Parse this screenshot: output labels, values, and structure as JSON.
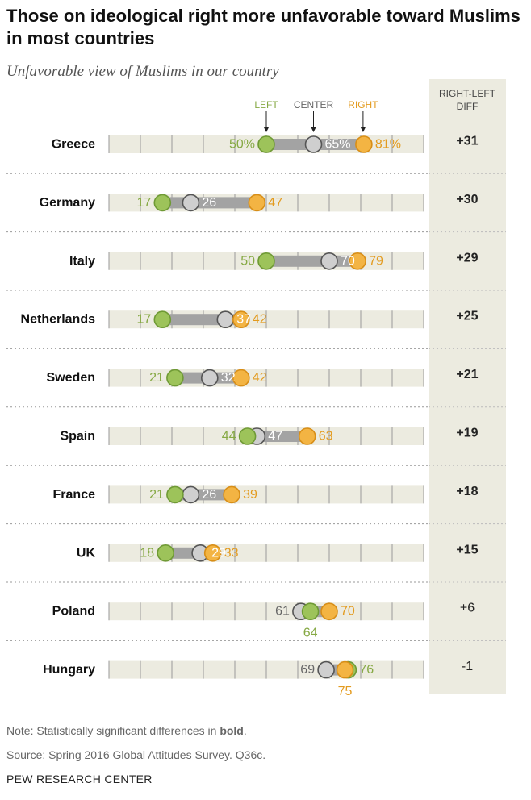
{
  "header": {
    "title": "Those on ideological right more unfavorable toward Muslims in most countries",
    "subtitle": "Unfavorable view of Muslims in our country"
  },
  "diff_header": "RIGHT-LEFT DIFF",
  "footer": {
    "note_prefix": "Note: Statistically significant differences in ",
    "note_bold": "bold",
    "note_suffix": ".",
    "source": "Source: Spring 2016 Global Attitudes Survey. Q36c.",
    "brand": "PEW RESEARCH CENTER"
  },
  "colors": {
    "left": "#9dc35a",
    "center": "#cfcfcf",
    "right": "#f3b443",
    "left_text": "#86a944",
    "center_text": "#666666",
    "right_text": "#e39b1f",
    "bar": "#a3a3a3",
    "track": "#ecebe0",
    "diff_panel": "#ecebe0"
  },
  "chart_data": {
    "type": "dot",
    "title": "Those on ideological right more unfavorable toward Muslims in most countries",
    "subtitle": "Unfavorable view of Muslims in our country",
    "xlim": [
      0,
      100
    ],
    "series": [
      {
        "name": "LEFT",
        "values": [
          50,
          17,
          50,
          17,
          21,
          44,
          21,
          18,
          64,
          76
        ]
      },
      {
        "name": "CENTER",
        "values": [
          65,
          26,
          70,
          37,
          32,
          47,
          26,
          29,
          61,
          69
        ]
      },
      {
        "name": "RIGHT",
        "values": [
          81,
          47,
          79,
          42,
          42,
          63,
          39,
          33,
          70,
          75
        ]
      }
    ],
    "rows": [
      {
        "country": "Greece",
        "left": 50,
        "center": 65,
        "right": 81,
        "left_label": "50%",
        "center_label": "65%",
        "right_label": "81%",
        "diff": "+31",
        "significant": true
      },
      {
        "country": "Germany",
        "left": 17,
        "center": 26,
        "right": 47,
        "left_label": "17",
        "center_label": "26",
        "right_label": "47",
        "diff": "+30",
        "significant": true
      },
      {
        "country": "Italy",
        "left": 50,
        "center": 70,
        "right": 79,
        "left_label": "50",
        "center_label": "70",
        "right_label": "79",
        "diff": "+29",
        "significant": true
      },
      {
        "country": "Netherlands",
        "left": 17,
        "center": 37,
        "right": 42,
        "left_label": "17",
        "center_label": "37",
        "right_label": "42",
        "diff": "+25",
        "significant": true
      },
      {
        "country": "Sweden",
        "left": 21,
        "center": 32,
        "right": 42,
        "left_label": "21",
        "center_label": "32",
        "right_label": "42",
        "diff": "+21",
        "significant": true
      },
      {
        "country": "Spain",
        "left": 44,
        "center": 47,
        "right": 63,
        "left_label": "44",
        "center_label": "47",
        "right_label": "63",
        "diff": "+19",
        "significant": true
      },
      {
        "country": "France",
        "left": 21,
        "center": 26,
        "right": 39,
        "left_label": "21",
        "center_label": "26",
        "right_label": "39",
        "diff": "+18",
        "significant": true
      },
      {
        "country": "UK",
        "left": 18,
        "center": 29,
        "right": 33,
        "left_label": "18",
        "center_label": "29",
        "right_label": "33",
        "diff": "+15",
        "significant": true
      },
      {
        "country": "Poland",
        "left": 64,
        "center": 61,
        "right": 70,
        "left_label": "64",
        "center_label": "61",
        "right_label": "70",
        "diff": "+6",
        "significant": false
      },
      {
        "country": "Hungary",
        "left": 76,
        "center": 69,
        "right": 75,
        "left_label": "76",
        "center_label": "69",
        "right_label": "75",
        "diff": "-1",
        "significant": false
      }
    ]
  }
}
